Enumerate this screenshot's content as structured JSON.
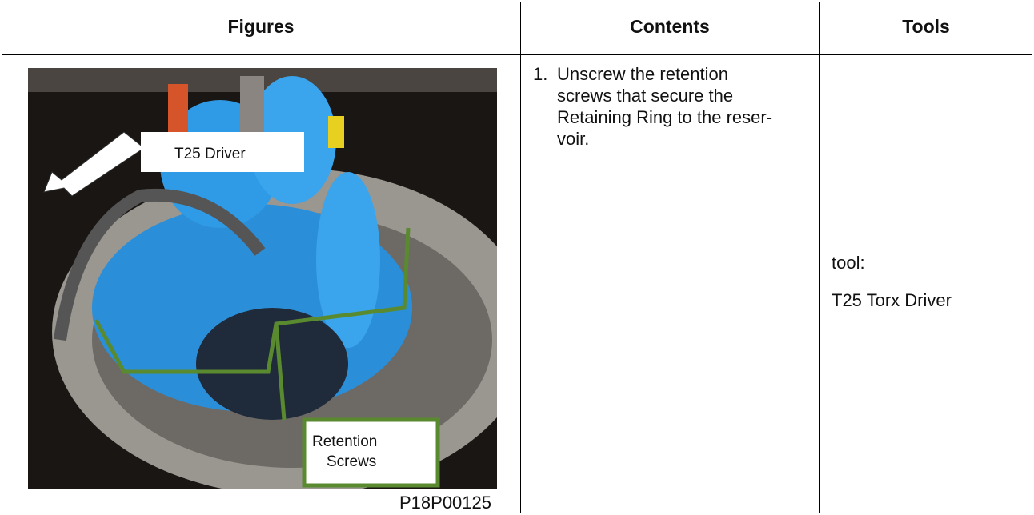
{
  "table": {
    "headers": [
      "Figures",
      "Contents",
      "Tools"
    ],
    "figure": {
      "callout_driver": "T25 Driver",
      "callout_screws": [
        "Retention",
        "Screws"
      ],
      "caption": "P18P00125"
    },
    "step": {
      "number": "1.",
      "lines": [
        "Unscrew the retention",
        "screws that secure the",
        "Retaining Ring to the reser-",
        "voir."
      ]
    },
    "tools": [
      "tool:",
      "T25 Torx Driver"
    ]
  }
}
